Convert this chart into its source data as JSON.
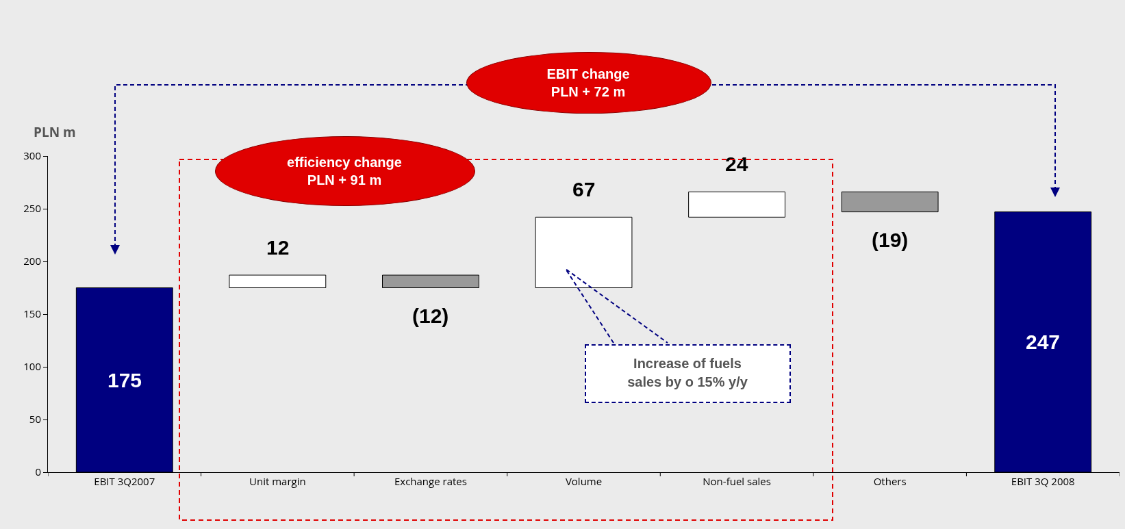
{
  "chart_data": {
    "type": "bar",
    "ylabel": "PLN m",
    "categories": [
      "EBIT 3Q2007",
      "Unit margin",
      "Exchange rates",
      "Volume",
      "Non-fuel sales",
      "Others",
      "EBIT 3Q 2008"
    ],
    "values": [
      175,
      12,
      -12,
      67,
      24,
      -19,
      247
    ],
    "base": [
      0,
      175,
      187,
      175,
      242,
      266,
      0
    ],
    "colors": [
      "#000080",
      "#ffffff",
      "#999999",
      "#ffffff",
      "#ffffff",
      "#999999",
      "#000080"
    ],
    "value_labels": [
      "175",
      "12",
      "(12)",
      "67",
      "24",
      "(19)",
      "247"
    ],
    "ylim": [
      0,
      300
    ],
    "yticks": [
      0,
      50,
      100,
      150,
      200,
      250,
      300
    ],
    "annotations": [
      "EBIT change\nPLN + 72  m",
      "efficiency change\nPLN + 91 m",
      "Increase of fuels\nsales by o 15% y/y"
    ]
  }
}
